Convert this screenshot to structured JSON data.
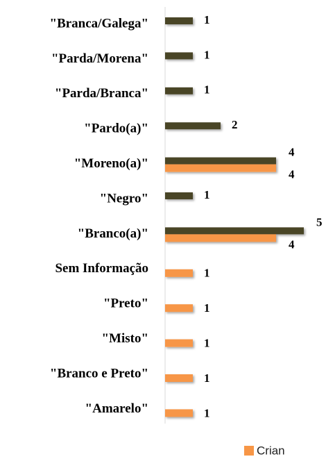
{
  "chart_data": {
    "type": "bar",
    "orientation": "horizontal",
    "categories": [
      "\"Branca/Galega\"",
      "\"Parda/Morena\"",
      "\"Parda/Branca\"",
      "\"Pardo(a)\"",
      "\"Moreno(a)\"",
      "\"Negro\"",
      "\"Branco(a)\"",
      "Sem Informação",
      "\"Preto\"",
      "\"Misto\"",
      "\"Branco e Preto\"",
      "\"Amarelo\""
    ],
    "series": [
      {
        "color": "#4a4527",
        "values": [
          1,
          1,
          1,
          2,
          4,
          1,
          5,
          null,
          null,
          null,
          null,
          null
        ]
      },
      {
        "name": "Crian",
        "color": "#f79646",
        "values": [
          null,
          null,
          null,
          null,
          4,
          null,
          4,
          1,
          1,
          1,
          1,
          1
        ]
      }
    ],
    "xlim": [
      0,
      5
    ],
    "legend": "bottom-right"
  }
}
